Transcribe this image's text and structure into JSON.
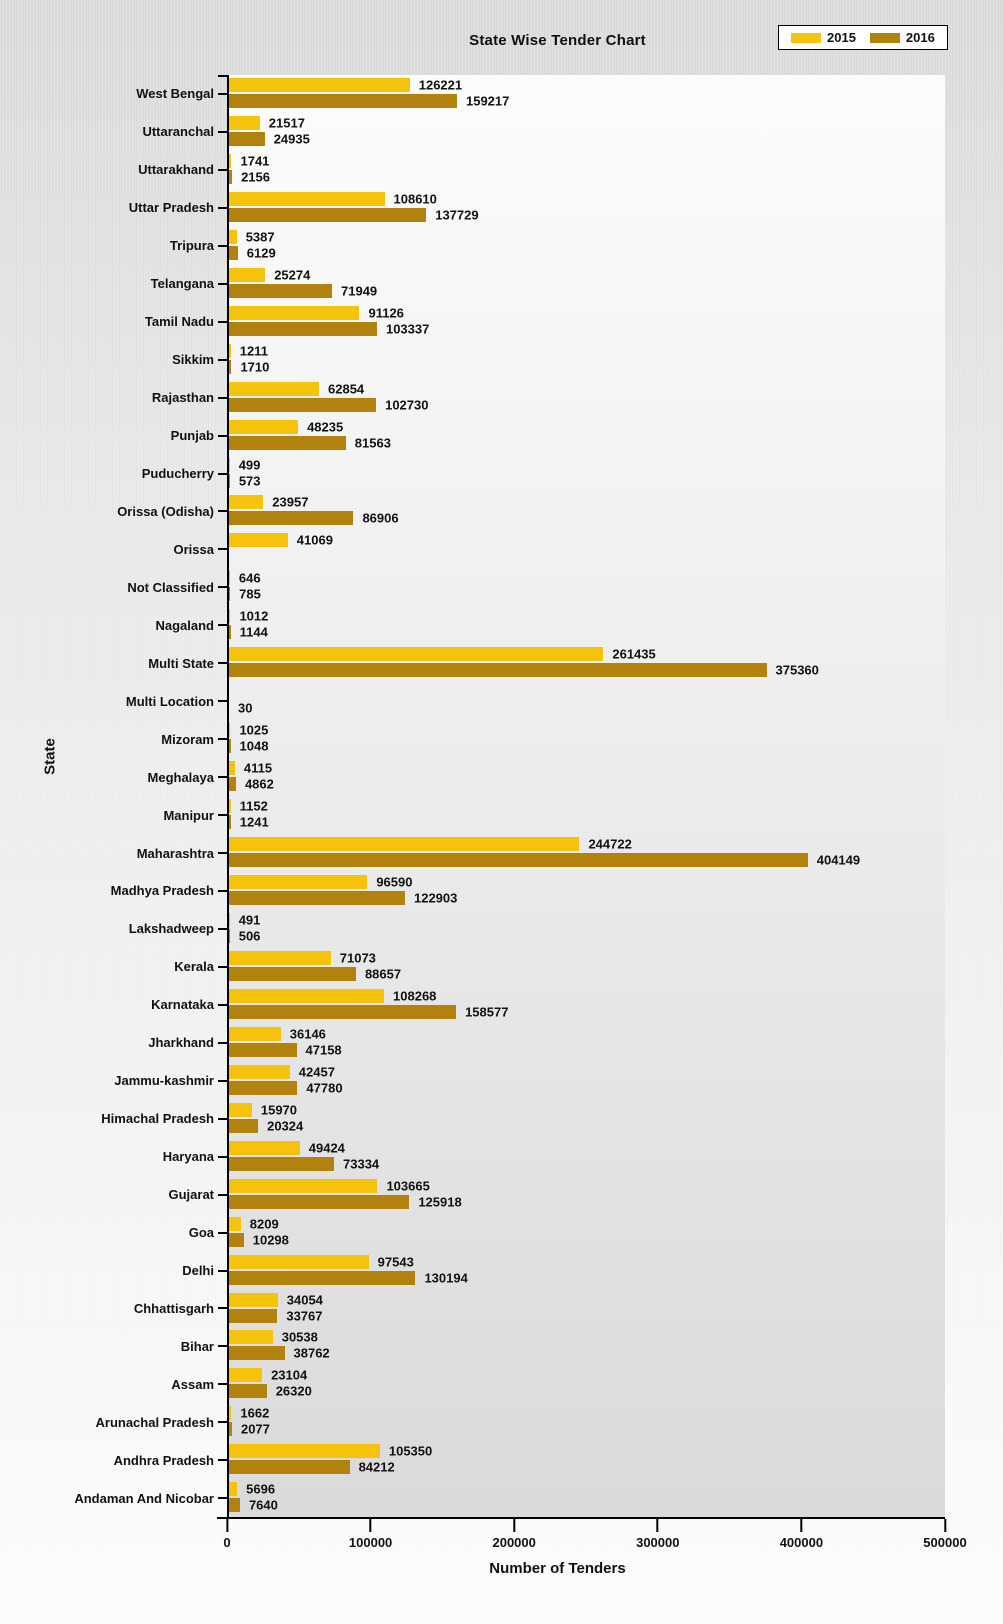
{
  "title": "State Wise Tender Chart",
  "axes": {
    "x_title": "Number of Tenders",
    "y_title": "State"
  },
  "legend": {
    "items": [
      {
        "label": "2015",
        "color": "#F5C30B"
      },
      {
        "label": "2016",
        "color": "#B1820D"
      }
    ]
  },
  "chart_data": {
    "type": "bar",
    "orientation": "horizontal",
    "title": "State Wise Tender Chart",
    "xlabel": "Number of Tenders",
    "ylabel": "State",
    "xlim": [
      0,
      500000
    ],
    "x_ticks": [
      0,
      100000,
      200000,
      300000,
      400000,
      500000
    ],
    "grid": false,
    "legend_position": "top-right",
    "value_labels": "outside-end",
    "categories": [
      "West Bengal",
      "Uttaranchal",
      "Uttarakhand",
      "Uttar Pradesh",
      "Tripura",
      "Telangana",
      "Tamil Nadu",
      "Sikkim",
      "Rajasthan",
      "Punjab",
      "Puducherry",
      "Orissa (Odisha)",
      "Orissa",
      "Not Classified",
      "Nagaland",
      "Multi State",
      "Multi Location",
      "Mizoram",
      "Meghalaya",
      "Manipur",
      "Maharashtra",
      "Madhya Pradesh",
      "Lakshadweep",
      "Kerala",
      "Karnataka",
      "Jharkhand",
      "Jammu-kashmir",
      "Himachal Pradesh",
      "Haryana",
      "Gujarat",
      "Goa",
      "Delhi",
      "Chhattisgarh",
      "Bihar",
      "Assam",
      "Arunachal Pradesh",
      "Andhra Pradesh",
      "Andaman And Nicobar"
    ],
    "series": [
      {
        "name": "2015",
        "color": "#F5C30B",
        "values": [
          126221,
          21517,
          1741,
          108610,
          5387,
          25274,
          91126,
          1211,
          62854,
          48235,
          499,
          23957,
          41069,
          646,
          1012,
          261435,
          null,
          1025,
          4115,
          1152,
          244722,
          96590,
          491,
          71073,
          108268,
          36146,
          42457,
          15970,
          49424,
          103665,
          8209,
          97543,
          34054,
          30538,
          23104,
          1662,
          105350,
          5696
        ]
      },
      {
        "name": "2016",
        "color": "#B1820D",
        "values": [
          159217,
          24935,
          2156,
          137729,
          6129,
          71949,
          103337,
          1710,
          102730,
          81563,
          573,
          86906,
          null,
          785,
          1144,
          375360,
          30,
          1048,
          4862,
          1241,
          404149,
          122903,
          506,
          88657,
          158577,
          47158,
          47780,
          20324,
          73334,
          125918,
          10298,
          130194,
          33767,
          38762,
          26320,
          2077,
          84212,
          7640
        ]
      }
    ]
  }
}
